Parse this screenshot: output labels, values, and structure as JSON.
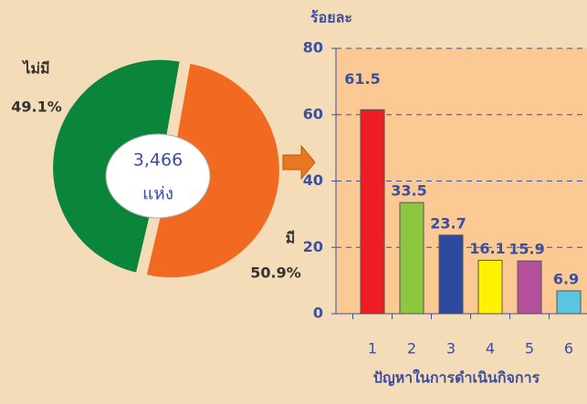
{
  "chart_data": [
    {
      "type": "pie",
      "categories": [
        "ไม่มี",
        "มี"
      ],
      "values": [
        49.1,
        50.9
      ],
      "value_labels": [
        "49.1%",
        "50.9%"
      ],
      "colors": [
        "#0b853c",
        "#f26a22"
      ],
      "center_text": [
        "3,466",
        "แห่ง"
      ]
    },
    {
      "type": "bar",
      "ylabel": "ร้อยละ",
      "xlabel": "ปัญหาในการดำเนินกิจการ",
      "categories": [
        "1",
        "2",
        "3",
        "4",
        "5",
        "6"
      ],
      "values": [
        61.5,
        33.5,
        23.7,
        16.1,
        15.9,
        6.9
      ],
      "colors": [
        "#ee1c24",
        "#8dc63f",
        "#2e4a9e",
        "#fff200",
        "#b5509c",
        "#5bc5e0"
      ],
      "ylim": [
        0,
        80
      ],
      "yticks": [
        0,
        20,
        40,
        60,
        80
      ],
      "grid": true
    }
  ]
}
